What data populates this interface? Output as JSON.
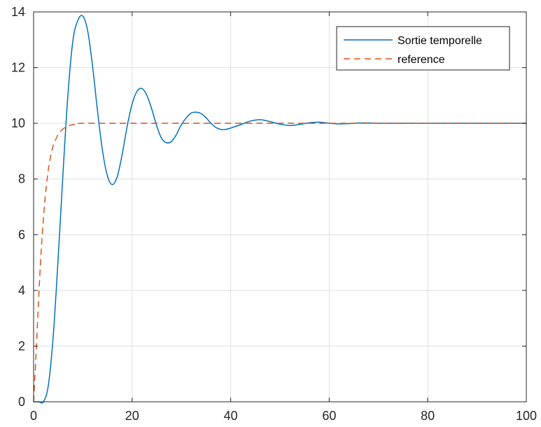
{
  "chart_data": {
    "type": "line",
    "title": "",
    "xlabel": "",
    "ylabel": "",
    "xlim": [
      0,
      100
    ],
    "ylim": [
      0,
      14
    ],
    "xticks": [
      0,
      20,
      40,
      60,
      80,
      100
    ],
    "yticks": [
      0,
      2,
      4,
      6,
      8,
      10,
      12,
      14
    ],
    "grid": true,
    "legend_position": "top-right",
    "series": [
      {
        "name": "Sortie temporelle",
        "color": "#0072BD",
        "style": "solid",
        "x": [
          0,
          1,
          2,
          3,
          4,
          5,
          6,
          7,
          8,
          9,
          10,
          11,
          12,
          13,
          14,
          15,
          16,
          17,
          18,
          19,
          20,
          21,
          22,
          23,
          24,
          25,
          26,
          27,
          28,
          29,
          30,
          31,
          32,
          33,
          34,
          35,
          36,
          37,
          38,
          39,
          40,
          42,
          44,
          46,
          48,
          50,
          52,
          54,
          56,
          58,
          60,
          62,
          64,
          66,
          68,
          70,
          75,
          80,
          85,
          90,
          95,
          100
        ],
        "y": [
          0,
          0,
          0,
          0.6,
          2.4,
          5.2,
          8.3,
          11.1,
          13.0,
          13.7,
          13.85,
          13.3,
          12.0,
          10.4,
          9.0,
          8.1,
          7.8,
          8.1,
          8.9,
          9.9,
          10.7,
          11.15,
          11.25,
          11.0,
          10.5,
          9.9,
          9.45,
          9.3,
          9.35,
          9.6,
          9.95,
          10.2,
          10.37,
          10.4,
          10.35,
          10.2,
          10.0,
          9.85,
          9.78,
          9.78,
          9.83,
          9.95,
          10.08,
          10.13,
          10.06,
          9.97,
          9.92,
          9.96,
          10.02,
          10.04,
          10.0,
          9.98,
          9.99,
          10.01,
          10.01,
          10.0,
          10.0,
          10.0,
          10.0,
          10.0,
          10.0,
          10.0
        ]
      },
      {
        "name": "reference",
        "color": "#D95319",
        "style": "dashed",
        "x": [
          0,
          0.5,
          1,
          1.5,
          2,
          2.5,
          3,
          3.5,
          4,
          5,
          6,
          7,
          8,
          9,
          10,
          20,
          40,
          60,
          80,
          100
        ],
        "y": [
          0,
          1.7,
          3.6,
          5.3,
          6.6,
          7.6,
          8.35,
          8.85,
          9.2,
          9.6,
          9.8,
          9.9,
          9.95,
          9.98,
          10.0,
          10.0,
          10.0,
          10.0,
          10.0,
          10.0
        ]
      }
    ]
  }
}
